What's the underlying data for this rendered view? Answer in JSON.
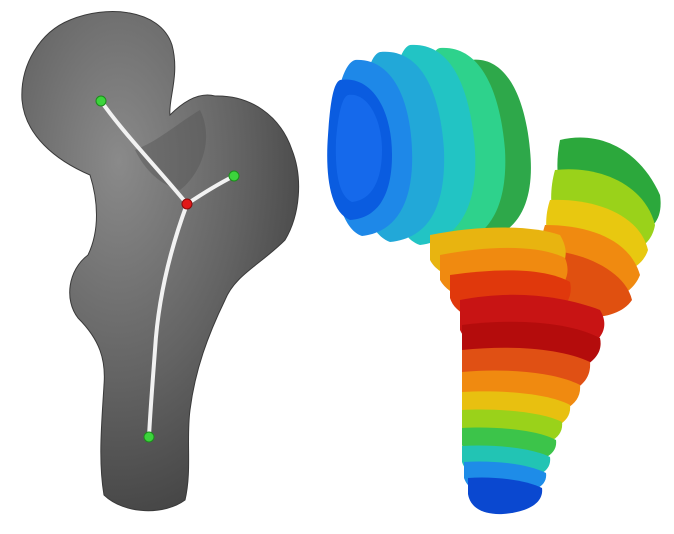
{
  "panels": {
    "left": {
      "kind": "skeleton-on-mesh",
      "mesh_color": "#636363",
      "skeleton_color": "#f2f2f2",
      "endpoint_color": "#3cd43c",
      "junction_color": "#e01818"
    },
    "right": {
      "kind": "level-set-slices",
      "colormap": [
        "#0a3cd8",
        "#1e78f0",
        "#22b4d8",
        "#2ed2a0",
        "#3cd24a",
        "#9ade1a",
        "#f0d80c",
        "#f28a0c",
        "#e0280c",
        "#b40c0c"
      ]
    }
  }
}
